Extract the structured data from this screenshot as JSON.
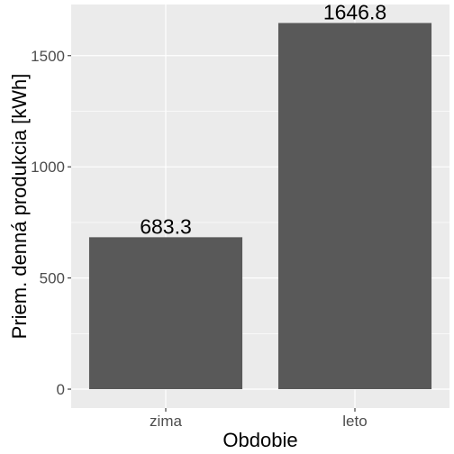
{
  "chart_data": {
    "type": "bar",
    "categories": [
      "zima",
      "leto"
    ],
    "values": [
      683.3,
      1646.8
    ],
    "data_labels": [
      "683.3",
      "1646.8"
    ],
    "xlabel": "Obdobie",
    "ylabel": "Priem. denná produkcia [kWh]",
    "ylim": [
      -85,
      1730
    ],
    "yticks": [
      0,
      500,
      1000,
      1500
    ],
    "ytick_labels": [
      "0",
      "500",
      "1000",
      "1500"
    ],
    "grid": true,
    "legend": "none"
  },
  "colors": {
    "panel_background": "#ebebeb",
    "grid_major": "#ffffff",
    "bar_fill": "#595959"
  }
}
